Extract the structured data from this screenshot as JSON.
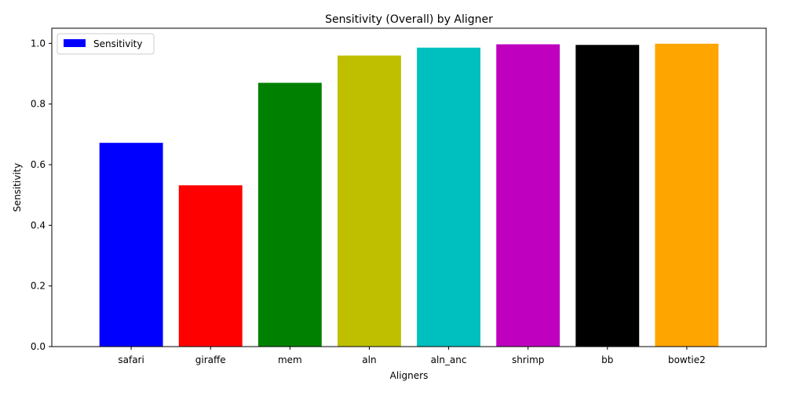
{
  "chart_data": {
    "type": "bar",
    "title": "Sensitivity (Overall) by Aligner",
    "xlabel": "Aligners",
    "ylabel": "Sensitivity",
    "categories": [
      "safari",
      "giraffe",
      "mem",
      "aln",
      "aln_anc",
      "shrimp",
      "bb",
      "bowtie2"
    ],
    "values": [
      0.672,
      0.532,
      0.87,
      0.96,
      0.986,
      0.997,
      0.995,
      0.999
    ],
    "bar_colors": [
      "#0000ff",
      "#ff0000",
      "#008000",
      "#bfbf00",
      "#00bfbf",
      "#bf00bf",
      "#000000",
      "#ffa500"
    ],
    "ylim": [
      0,
      1.05
    ],
    "yticks": [
      "0.0",
      "0.2",
      "0.4",
      "0.6",
      "0.8",
      "1.0"
    ],
    "legend": {
      "label": "Sensitivity",
      "color": "#0000ff",
      "placement": "top-left"
    },
    "grid": false
  }
}
